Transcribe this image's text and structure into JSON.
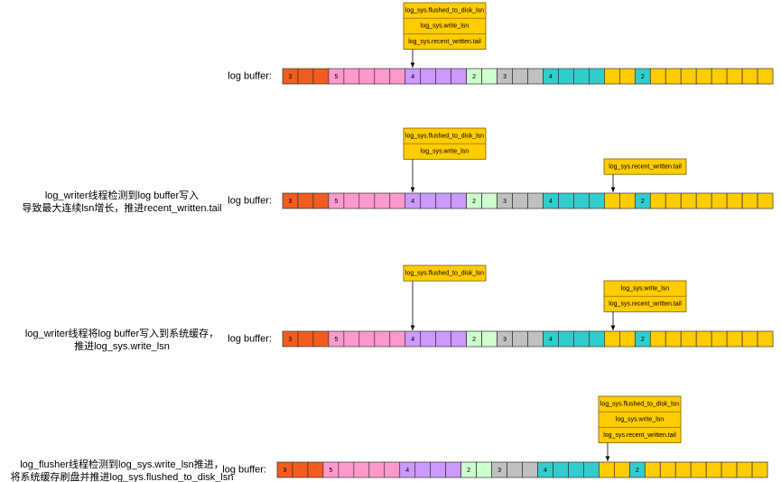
{
  "cell_colors": [
    "#f25c1e",
    "#f25c1e",
    "#f25c1e",
    "#ff99cc",
    "#ff99cc",
    "#ff99cc",
    "#ff99cc",
    "#ff99cc",
    "#cc99ff",
    "#cc99ff",
    "#cc99ff",
    "#cc99ff",
    "#ccffcc",
    "#ccffcc",
    "#c0c0c0",
    "#c0c0c0",
    "#c0c0c0",
    "#33cccc",
    "#33cccc",
    "#33cccc",
    "#33cccc",
    "#ffcc00",
    "#ffcc00",
    "#33cccc",
    "#ffcc00",
    "#ffcc00",
    "#ffcc00",
    "#ffcc00",
    "#ffcc00",
    "#ffcc00",
    "#ffcc00",
    "#ffcc00"
  ],
  "box_color": "#ffcc00",
  "rows": [
    {
      "caption": [],
      "label": "log buffer:",
      "cells": [
        "3",
        null,
        null,
        "5",
        null,
        null,
        null,
        null,
        "4",
        null,
        null,
        null,
        "2",
        null,
        "3",
        null,
        null,
        "4",
        null,
        null,
        null,
        null,
        null,
        "2",
        null,
        null,
        null,
        null,
        null,
        null,
        null,
        null
      ],
      "pointers": [
        {
          "lines": [
            "log_sys.flushed_to_disk_lsn",
            "log_sys.write_lsn",
            "log_sys.recent_written.tail"
          ]
        }
      ]
    },
    {
      "caption": [
        "log_writer线程检测到log buffer写入",
        "导致最大连续lsn增长，推进recent_written.tail"
      ],
      "label": "log buffer:",
      "cells": [
        "3",
        null,
        null,
        "5",
        null,
        null,
        null,
        null,
        "4",
        null,
        null,
        null,
        "2",
        null,
        "3",
        null,
        null,
        "4",
        null,
        null,
        null,
        null,
        null,
        "2",
        null,
        null,
        null,
        null,
        null,
        null,
        null,
        null
      ],
      "pointers": [
        {
          "lines": [
            "log_sys.flushed_to_disk_lsn",
            "log_sys.write_lsn"
          ]
        },
        {
          "lines": [
            "log_sys.recent_written.tail"
          ]
        }
      ]
    },
    {
      "caption": [
        "log_writer线程将log buffer写入到系统缓存，",
        "推进log_sys.write_lsn"
      ],
      "label": "log buffer:",
      "cells": [
        "3",
        null,
        null,
        "5",
        null,
        null,
        null,
        null,
        "4",
        null,
        null,
        null,
        "2",
        null,
        "3",
        null,
        null,
        "4",
        null,
        null,
        null,
        null,
        null,
        "2",
        null,
        null,
        null,
        null,
        null,
        null,
        null,
        null
      ],
      "pointers": [
        {
          "lines": [
            "log_sys.flushed_to_disk_lsn"
          ]
        },
        {
          "lines": [
            "log_sys.write_lsn",
            "log_sys.recent_written.tail"
          ]
        }
      ]
    },
    {
      "caption": [
        "log_flusher线程检测到log_sys.write_lsn推进，",
        "将系统缓存刷盘并推进log_sys.flushed_to_disk_lsn"
      ],
      "label": "log buffer:",
      "cells": [
        "3",
        null,
        null,
        "5",
        null,
        null,
        null,
        null,
        "4",
        null,
        null,
        null,
        "2",
        null,
        "3",
        null,
        null,
        "4",
        null,
        null,
        null,
        null,
        null,
        "2",
        null,
        null,
        null,
        null,
        null,
        null,
        null,
        null
      ],
      "pointers": [
        {
          "lines": [
            "log_sys.flushed_to_disk_lsn",
            "log_sys.write_lsn",
            "log_sys.recent_written.tail"
          ]
        }
      ]
    }
  ]
}
